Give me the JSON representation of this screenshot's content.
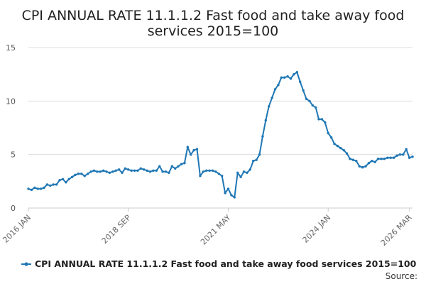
{
  "chart_data": {
    "type": "line",
    "title_lines": [
      "CPI ANNUAL RATE 11.1.1.2 Fast food and take away food",
      "services 2015=100"
    ],
    "xlabel": "",
    "ylabel": "",
    "ylim": [
      0,
      15
    ],
    "yticks": [
      "0",
      "5",
      "10",
      "15"
    ],
    "xtick_labels": [
      "2016 JAN",
      "2018 SEP",
      "2021 MAY",
      "2024 JAN",
      "2026 MAR"
    ],
    "xtick_index": [
      0,
      32,
      64,
      96,
      122
    ],
    "grid": true,
    "legend_position": "bottom",
    "source_label": "Source:",
    "color": "#1f77b4",
    "series": [
      {
        "name": "CPI ANNUAL RATE 11.1.1.2 Fast food and take away food services 2015=100",
        "values": [
          1.8,
          1.7,
          1.9,
          1.8,
          1.8,
          1.9,
          2.2,
          2.1,
          2.2,
          2.2,
          2.6,
          2.7,
          2.4,
          2.7,
          2.9,
          3.1,
          3.2,
          3.2,
          3.0,
          3.2,
          3.4,
          3.5,
          3.4,
          3.4,
          3.5,
          3.4,
          3.3,
          3.4,
          3.5,
          3.6,
          3.3,
          3.7,
          3.6,
          3.5,
          3.5,
          3.5,
          3.7,
          3.6,
          3.5,
          3.4,
          3.5,
          3.5,
          3.9,
          3.4,
          3.4,
          3.3,
          3.9,
          3.7,
          3.9,
          4.1,
          4.2,
          5.7,
          5.0,
          5.4,
          5.5,
          3.0,
          3.4,
          3.5,
          3.5,
          3.5,
          3.4,
          3.2,
          3.0,
          1.4,
          1.8,
          1.2,
          1.0,
          3.3,
          2.9,
          3.4,
          3.3,
          3.6,
          4.4,
          4.5,
          5.0,
          6.7,
          8.2,
          9.5,
          10.3,
          11.1,
          11.5,
          12.2,
          12.2,
          12.3,
          12.1,
          12.5,
          12.7,
          11.8,
          11.0,
          10.2,
          10.0,
          9.6,
          9.4,
          8.3,
          8.3,
          8.0,
          7.0,
          6.6,
          6.0,
          5.8,
          5.6,
          5.4,
          5.1,
          4.6,
          4.5,
          4.4,
          3.9,
          3.8,
          3.9,
          4.2,
          4.4,
          4.3,
          4.6,
          4.6,
          4.6,
          4.7,
          4.7,
          4.7,
          4.9,
          5.0,
          5.0,
          5.5,
          4.7,
          4.8
        ]
      }
    ]
  }
}
